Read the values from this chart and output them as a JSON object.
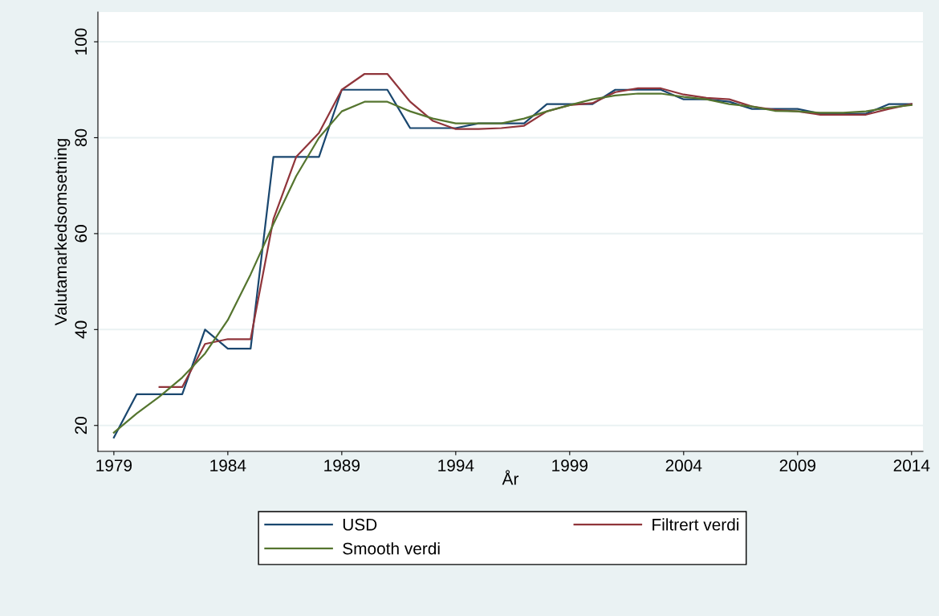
{
  "chart_data": {
    "type": "line",
    "xlabel": "År",
    "ylabel": "Valutamarkedsomsetning",
    "xlim": [
      1978.3,
      2014.5
    ],
    "ylim": [
      14.6,
      106.2
    ],
    "xticks": [
      1979,
      1984,
      1989,
      1994,
      1999,
      2004,
      2009,
      2014
    ],
    "yticks": [
      20,
      40,
      60,
      80,
      100
    ],
    "grid": "y",
    "legend": "bottom",
    "series": [
      {
        "name": "USD",
        "color": "#1a476f",
        "x": [
          1979,
          1980,
          1981,
          1982,
          1983,
          1984,
          1985,
          1986,
          1987,
          1988,
          1989,
          1990,
          1991,
          1992,
          1993,
          1994,
          1995,
          1996,
          1997,
          1998,
          1999,
          2000,
          2001,
          2002,
          2003,
          2004,
          2005,
          2006,
          2007,
          2008,
          2009,
          2010,
          2011,
          2012,
          2013,
          2014
        ],
        "values": [
          17.5,
          26.5,
          26.5,
          26.5,
          40,
          36,
          36,
          76,
          76,
          76,
          90,
          90,
          90,
          82,
          82,
          82,
          83,
          83,
          83,
          87,
          87,
          87,
          90,
          90,
          90,
          88,
          88,
          87.5,
          86,
          86,
          86,
          85,
          85,
          85,
          87,
          87
        ]
      },
      {
        "name": "Filtrert verdi",
        "color": "#90353b",
        "x": [
          1981,
          1982,
          1983,
          1984,
          1985,
          1986,
          1987,
          1988,
          1989,
          1990,
          1991,
          1992,
          1993,
          1994,
          1995,
          1996,
          1997,
          1998,
          1999,
          2000,
          2001,
          2002,
          2003,
          2004,
          2005,
          2006,
          2007,
          2008,
          2009,
          2010,
          2011,
          2012,
          2013,
          2014
        ],
        "values": [
          28,
          28,
          37,
          38,
          38,
          63,
          76,
          81,
          90,
          93.3,
          93.3,
          87.5,
          83.5,
          81.8,
          81.8,
          82,
          82.5,
          85.5,
          86.8,
          87.2,
          89.5,
          90.3,
          90.3,
          89,
          88.3,
          88,
          86.5,
          85.8,
          85.5,
          84.8,
          84.8,
          84.8,
          86,
          87
        ]
      },
      {
        "name": "Smooth verdi",
        "color": "#55752f",
        "x": [
          1979,
          1980,
          1981,
          1982,
          1983,
          1984,
          1985,
          1986,
          1987,
          1988,
          1989,
          1990,
          1991,
          1992,
          1993,
          1994,
          1995,
          1996,
          1997,
          1998,
          1999,
          2000,
          2001,
          2002,
          2003,
          2004,
          2005,
          2006,
          2007,
          2008,
          2009,
          2010,
          2011,
          2012,
          2013,
          2014
        ],
        "values": [
          18.5,
          22.5,
          26,
          30,
          35,
          42,
          51.5,
          62,
          72,
          80,
          85.5,
          87.5,
          87.5,
          85.5,
          84,
          83,
          83,
          83,
          84,
          85.5,
          86.8,
          88,
          88.8,
          89.2,
          89.2,
          88.5,
          88,
          87,
          86.5,
          85.6,
          85.5,
          85.2,
          85.2,
          85.5,
          86.3,
          86.8
        ]
      }
    ]
  }
}
